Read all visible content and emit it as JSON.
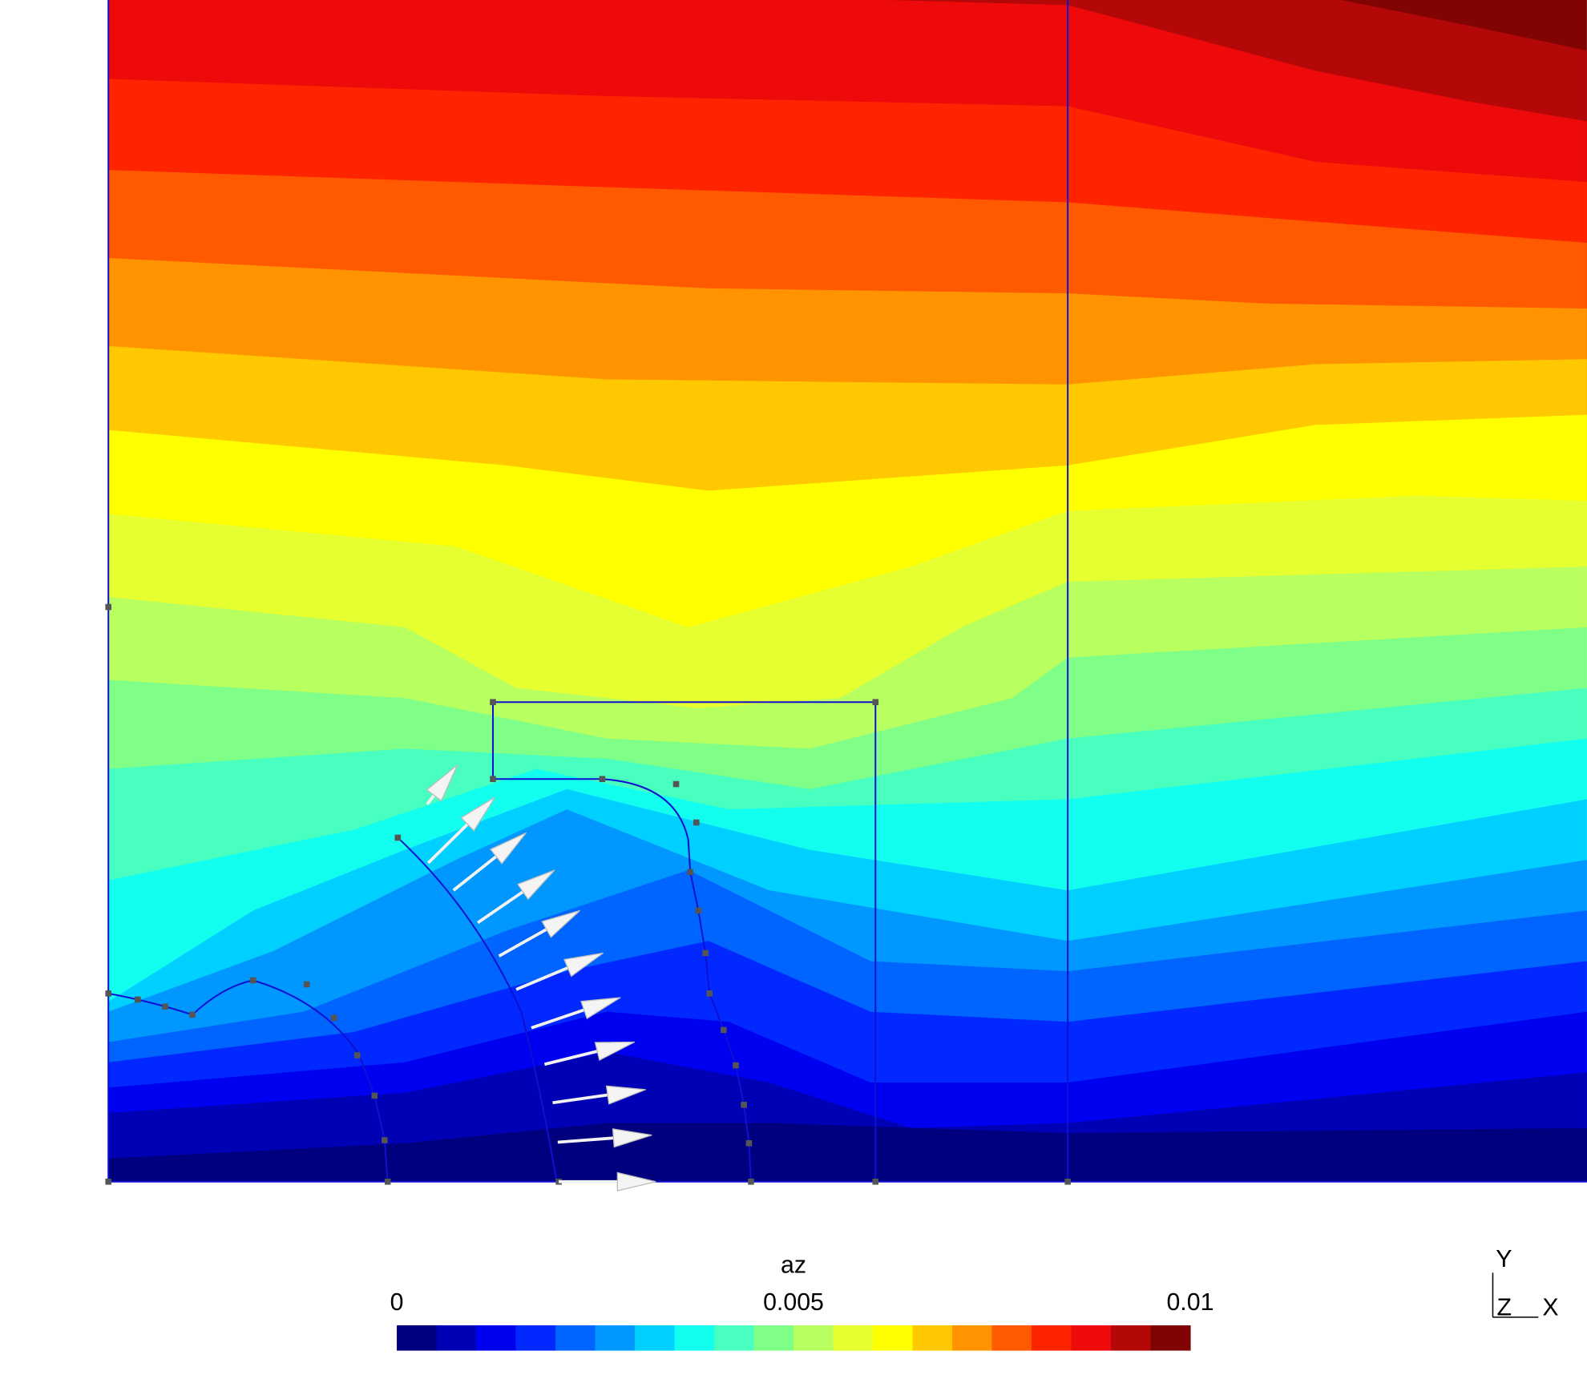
{
  "colorbar": {
    "title": "az",
    "range": [
      0,
      0.01
    ],
    "ticks": [
      0,
      0.005,
      0.01
    ],
    "colors": [
      "#00007f",
      "#0000b4",
      "#0000f0",
      "#0028ff",
      "#0064ff",
      "#0098ff",
      "#00d0ff",
      "#12fff0",
      "#48ffc0",
      "#80ff88",
      "#b8ff60",
      "#e6ff30",
      "#ffff00",
      "#ffc800",
      "#ff9400",
      "#ff5a00",
      "#ff2400",
      "#ee0a0a",
      "#b40808",
      "#800404"
    ]
  },
  "triad": {
    "y": "Y",
    "z": "Z",
    "x": "X"
  }
}
